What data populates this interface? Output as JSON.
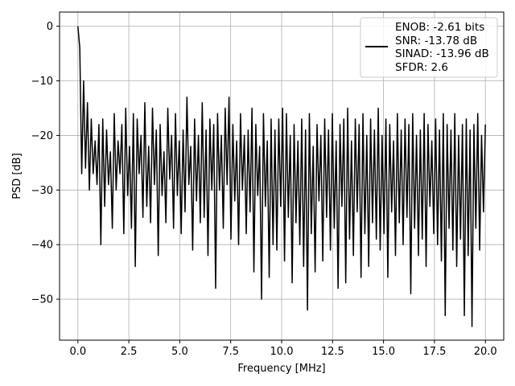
{
  "chart_data": {
    "type": "line",
    "title": "",
    "xlabel": "Frequency [MHz]",
    "ylabel": "PSD [dB]",
    "xlim": [
      -0.9,
      20.9
    ],
    "ylim": [
      -57.5,
      2.6
    ],
    "xticks": [
      0.0,
      2.5,
      5.0,
      7.5,
      10.0,
      12.5,
      15.0,
      17.5,
      20.0
    ],
    "xtick_labels": [
      "0.0",
      "2.5",
      "5.0",
      "7.5",
      "10.0",
      "12.5",
      "15.0",
      "17.5",
      "20.0"
    ],
    "yticks": [
      0,
      -10,
      -20,
      -30,
      -40,
      -50
    ],
    "ytick_labels": [
      "0",
      "−10",
      "−20",
      "−30",
      "−40",
      "−50"
    ],
    "grid": true,
    "legend_position": "top-right",
    "line_color": "#000000",
    "series": [
      {
        "name": "",
        "x_start": 0.0,
        "x_end": 20.0,
        "values": [
          0,
          -4,
          -27,
          -10,
          -26,
          -14,
          -30,
          -17,
          -27,
          -21,
          -29,
          -18,
          -40,
          -17,
          -33,
          -19,
          -29,
          -23,
          -37,
          -16,
          -30,
          -21,
          -27,
          -18,
          -38,
          -15,
          -31,
          -22,
          -37,
          -16,
          -44,
          -17,
          -27,
          -20,
          -35,
          -14,
          -33,
          -22,
          -36,
          -15,
          -29,
          -19,
          -42,
          -18,
          -31,
          -23,
          -36,
          -15,
          -28,
          -20,
          -37,
          -16,
          -31,
          -21,
          -38,
          -19,
          -34,
          -13,
          -29,
          -22,
          -41,
          -17,
          -32,
          -20,
          -36,
          -14,
          -35,
          -19,
          -42,
          -17,
          -30,
          -18,
          -48,
          -16,
          -30,
          -20,
          -37,
          -15,
          -29,
          -13,
          -39,
          -18,
          -32,
          -21,
          -40,
          -16,
          -30,
          -20,
          -38,
          -19,
          -34,
          -15,
          -45,
          -18,
          -31,
          -22,
          -50,
          -16,
          -33,
          -21,
          -46,
          -17,
          -40,
          -19,
          -41,
          -17,
          -33,
          -15,
          -43,
          -16,
          -35,
          -20,
          -47,
          -18,
          -36,
          -21,
          -40,
          -17,
          -44,
          -19,
          -52,
          -16,
          -38,
          -22,
          -45,
          -18,
          -32,
          -20,
          -43,
          -17,
          -35,
          -19,
          -41,
          -16,
          -37,
          -21,
          -48,
          -18,
          -33,
          -17,
          -47,
          -15,
          -39,
          -21,
          -42,
          -17,
          -34,
          -18,
          -46,
          -16,
          -38,
          -20,
          -44,
          -17,
          -36,
          -19,
          -39,
          -15,
          -41,
          -20,
          -38,
          -17,
          -46,
          -18,
          -34,
          -21,
          -42,
          -16,
          -36,
          -19,
          -40,
          -17,
          -35,
          -18,
          -49,
          -16,
          -37,
          -20,
          -42,
          -19,
          -39,
          -16,
          -44,
          -18,
          -33,
          -21,
          -38,
          -17,
          -40,
          -19,
          -43,
          -16,
          -53,
          -18,
          -37,
          -19,
          -41,
          -16,
          -44,
          -20,
          -39,
          -18,
          -53,
          -17,
          -42,
          -19,
          -55,
          -18,
          -37,
          -16,
          -41,
          -20,
          -34,
          -18
        ]
      }
    ],
    "legend": {
      "lines": [
        "ENOB: -2.61 bits",
        "SNR: -13.78 dB",
        "SINAD: -13.96 dB",
        "SFDR: 2.6"
      ]
    }
  }
}
